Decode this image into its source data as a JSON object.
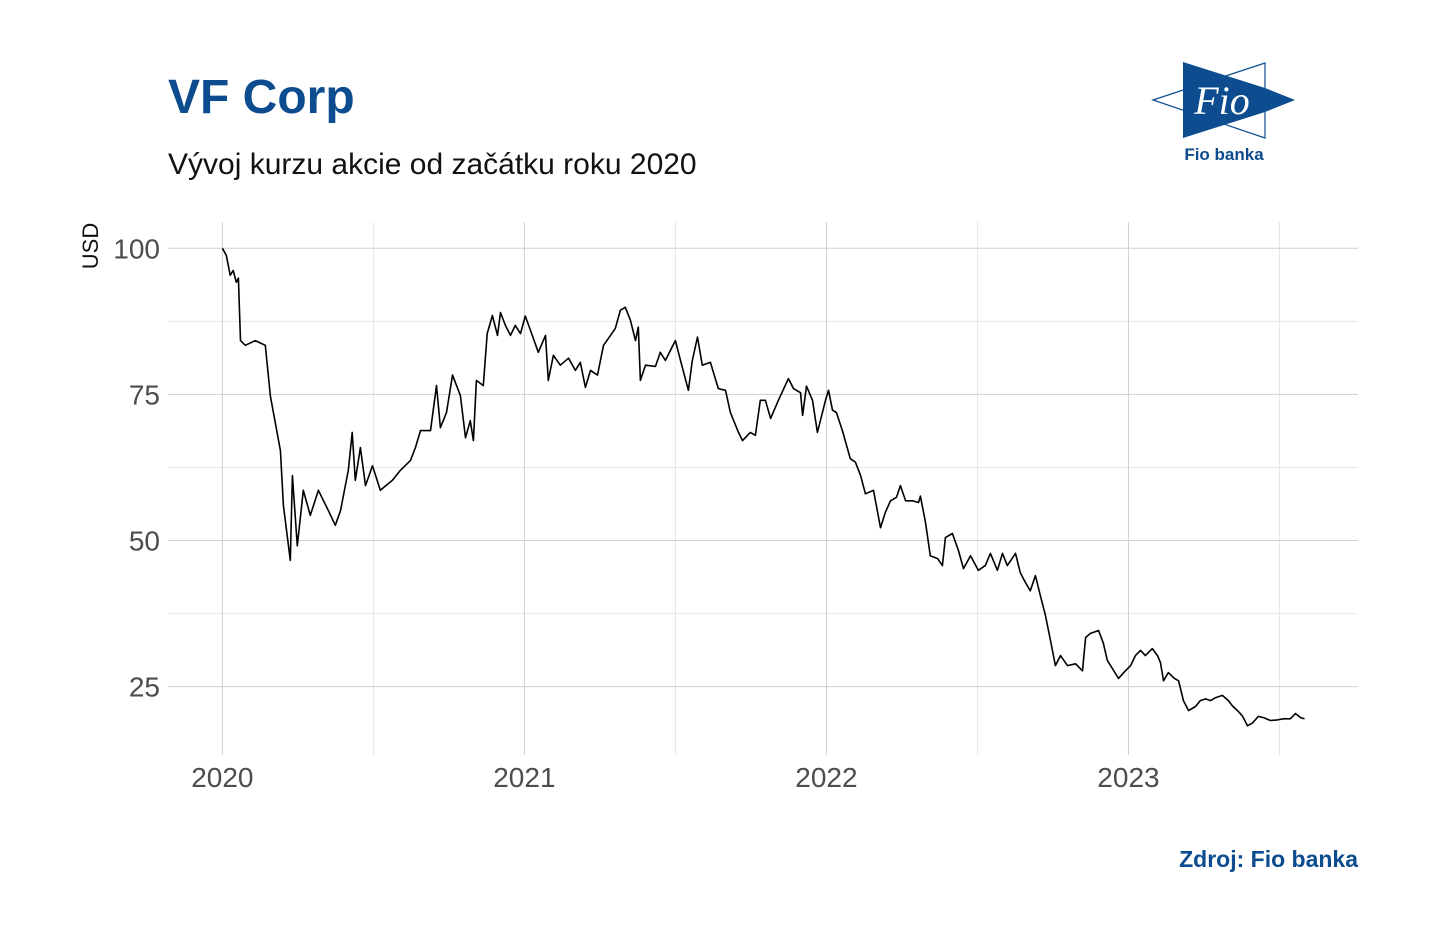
{
  "header": {
    "title": "VF Corp",
    "subtitle": "Vývoj kurzu akcie od začátku roku 2020"
  },
  "logo": {
    "text": "Fio",
    "caption": "Fio banka",
    "color": "#0d4c8f"
  },
  "footer": {
    "source": "Zdroj: Fio banka"
  },
  "chart_data": {
    "type": "line",
    "title": "VF Corp",
    "subtitle": "Vývoj kurzu akcie od začátku roku 2020",
    "xlabel": "",
    "ylabel": "USD",
    "x_ticks": [
      "2020",
      "2021",
      "2022",
      "2023"
    ],
    "y_ticks": [
      25,
      50,
      75,
      100
    ],
    "xlim": [
      2019.82,
      2023.76
    ],
    "ylim": [
      13.3,
      104.5
    ],
    "grid": true,
    "line_color": "#000000",
    "series": [
      {
        "points": [
          [
            2020.0,
            100.0
          ],
          [
            2020.013,
            98.8
          ],
          [
            2020.026,
            95.4
          ],
          [
            2020.036,
            96.2
          ],
          [
            2020.046,
            94.2
          ],
          [
            2020.053,
            94.9
          ],
          [
            2020.06,
            84.2
          ],
          [
            2020.076,
            83.4
          ],
          [
            2020.109,
            84.2
          ],
          [
            2020.142,
            83.4
          ],
          [
            2020.159,
            74.7
          ],
          [
            2020.192,
            65.4
          ],
          [
            2020.202,
            56.0
          ],
          [
            2020.225,
            46.6
          ],
          [
            2020.232,
            61.1
          ],
          [
            2020.248,
            49.1
          ],
          [
            2020.268,
            58.6
          ],
          [
            2020.291,
            54.3
          ],
          [
            2020.318,
            58.6
          ],
          [
            2020.351,
            55.1
          ],
          [
            2020.374,
            52.6
          ],
          [
            2020.391,
            55.1
          ],
          [
            2020.417,
            62.0
          ],
          [
            2020.43,
            68.5
          ],
          [
            2020.44,
            60.3
          ],
          [
            2020.457,
            65.9
          ],
          [
            2020.474,
            59.4
          ],
          [
            2020.497,
            62.8
          ],
          [
            2020.523,
            58.6
          ],
          [
            2020.563,
            60.3
          ],
          [
            2020.589,
            62.0
          ],
          [
            2020.623,
            63.7
          ],
          [
            2020.639,
            65.9
          ],
          [
            2020.656,
            68.8
          ],
          [
            2020.689,
            68.8
          ],
          [
            2020.709,
            76.5
          ],
          [
            2020.722,
            69.3
          ],
          [
            2020.742,
            71.9
          ],
          [
            2020.762,
            78.3
          ],
          [
            2020.788,
            74.8
          ],
          [
            2020.805,
            67.6
          ],
          [
            2020.821,
            70.5
          ],
          [
            2020.831,
            67.1
          ],
          [
            2020.841,
            77.4
          ],
          [
            2020.864,
            76.5
          ],
          [
            2020.877,
            85.4
          ],
          [
            2020.894,
            88.5
          ],
          [
            2020.911,
            85.1
          ],
          [
            2020.921,
            89.0
          ],
          [
            2020.937,
            86.8
          ],
          [
            2020.954,
            85.1
          ],
          [
            2020.97,
            86.8
          ],
          [
            2020.987,
            85.4
          ],
          [
            2021.003,
            88.4
          ],
          [
            2021.02,
            86.0
          ],
          [
            2021.046,
            82.2
          ],
          [
            2021.07,
            85.1
          ],
          [
            2021.079,
            77.4
          ],
          [
            2021.096,
            81.7
          ],
          [
            2021.119,
            80.0
          ],
          [
            2021.146,
            81.2
          ],
          [
            2021.169,
            79.1
          ],
          [
            2021.185,
            80.5
          ],
          [
            2021.202,
            76.2
          ],
          [
            2021.219,
            79.1
          ],
          [
            2021.242,
            78.3
          ],
          [
            2021.262,
            83.4
          ],
          [
            2021.285,
            85.1
          ],
          [
            2021.301,
            86.3
          ],
          [
            2021.318,
            89.4
          ],
          [
            2021.334,
            89.9
          ],
          [
            2021.351,
            87.7
          ],
          [
            2021.368,
            84.2
          ],
          [
            2021.377,
            86.5
          ],
          [
            2021.384,
            77.4
          ],
          [
            2021.401,
            80.0
          ],
          [
            2021.434,
            79.8
          ],
          [
            2021.45,
            82.2
          ],
          [
            2021.467,
            80.8
          ],
          [
            2021.483,
            82.5
          ],
          [
            2021.5,
            84.2
          ],
          [
            2021.517,
            80.8
          ],
          [
            2021.543,
            75.7
          ],
          [
            2021.556,
            80.8
          ],
          [
            2021.573,
            84.8
          ],
          [
            2021.589,
            80.0
          ],
          [
            2021.616,
            80.5
          ],
          [
            2021.642,
            76.0
          ],
          [
            2021.666,
            75.7
          ],
          [
            2021.682,
            71.9
          ],
          [
            2021.709,
            68.5
          ],
          [
            2021.722,
            67.1
          ],
          [
            2021.748,
            68.5
          ],
          [
            2021.765,
            68.0
          ],
          [
            2021.781,
            74.0
          ],
          [
            2021.798,
            74.0
          ],
          [
            2021.815,
            70.9
          ],
          [
            2021.841,
            74.0
          ],
          [
            2021.874,
            77.7
          ],
          [
            2021.891,
            76.0
          ],
          [
            2021.914,
            75.3
          ],
          [
            2021.921,
            71.4
          ],
          [
            2021.934,
            76.4
          ],
          [
            2021.954,
            74.0
          ],
          [
            2021.97,
            68.5
          ],
          [
            2021.997,
            74.0
          ],
          [
            2022.007,
            75.7
          ],
          [
            2022.02,
            72.3
          ],
          [
            2022.033,
            71.9
          ],
          [
            2022.053,
            68.8
          ],
          [
            2022.079,
            64.0
          ],
          [
            2022.096,
            63.4
          ],
          [
            2022.113,
            61.1
          ],
          [
            2022.129,
            58.0
          ],
          [
            2022.156,
            58.6
          ],
          [
            2022.179,
            52.2
          ],
          [
            2022.195,
            54.8
          ],
          [
            2022.212,
            56.8
          ],
          [
            2022.232,
            57.4
          ],
          [
            2022.245,
            59.4
          ],
          [
            2022.262,
            56.8
          ],
          [
            2022.285,
            56.8
          ],
          [
            2022.305,
            56.5
          ],
          [
            2022.311,
            57.6
          ],
          [
            2022.328,
            53.1
          ],
          [
            2022.344,
            47.4
          ],
          [
            2022.368,
            46.9
          ],
          [
            2022.384,
            45.7
          ],
          [
            2022.394,
            50.5
          ],
          [
            2022.417,
            51.2
          ],
          [
            2022.437,
            48.3
          ],
          [
            2022.454,
            45.2
          ],
          [
            2022.477,
            47.4
          ],
          [
            2022.503,
            44.9
          ],
          [
            2022.526,
            45.7
          ],
          [
            2022.543,
            47.8
          ],
          [
            2022.566,
            44.9
          ],
          [
            2022.583,
            47.8
          ],
          [
            2022.599,
            45.7
          ],
          [
            2022.626,
            47.8
          ],
          [
            2022.642,
            44.5
          ],
          [
            2022.659,
            42.8
          ],
          [
            2022.675,
            41.4
          ],
          [
            2022.692,
            44.0
          ],
          [
            2022.709,
            40.4
          ],
          [
            2022.725,
            37.2
          ],
          [
            2022.742,
            32.9
          ],
          [
            2022.758,
            28.6
          ],
          [
            2022.775,
            30.3
          ],
          [
            2022.798,
            28.6
          ],
          [
            2022.825,
            28.9
          ],
          [
            2022.848,
            27.7
          ],
          [
            2022.858,
            33.4
          ],
          [
            2022.874,
            34.1
          ],
          [
            2022.901,
            34.6
          ],
          [
            2022.917,
            32.4
          ],
          [
            2022.93,
            29.5
          ],
          [
            2022.947,
            28.1
          ],
          [
            2022.967,
            26.4
          ],
          [
            2022.99,
            27.7
          ],
          [
            2023.007,
            28.6
          ],
          [
            2023.023,
            30.3
          ],
          [
            2023.04,
            31.2
          ],
          [
            2023.056,
            30.3
          ],
          [
            2023.079,
            31.5
          ],
          [
            2023.096,
            30.3
          ],
          [
            2023.106,
            29.1
          ],
          [
            2023.116,
            26.0
          ],
          [
            2023.132,
            27.4
          ],
          [
            2023.152,
            26.4
          ],
          [
            2023.166,
            26.0
          ],
          [
            2023.182,
            22.6
          ],
          [
            2023.199,
            20.9
          ],
          [
            2023.222,
            21.6
          ],
          [
            2023.238,
            22.6
          ],
          [
            2023.255,
            22.9
          ],
          [
            2023.272,
            22.6
          ],
          [
            2023.288,
            23.1
          ],
          [
            2023.311,
            23.5
          ],
          [
            2023.331,
            22.6
          ],
          [
            2023.344,
            21.7
          ],
          [
            2023.361,
            20.9
          ],
          [
            2023.377,
            20.0
          ],
          [
            2023.394,
            18.3
          ],
          [
            2023.411,
            18.8
          ],
          [
            2023.43,
            19.9
          ],
          [
            2023.447,
            19.7
          ],
          [
            2023.47,
            19.2
          ],
          [
            2023.493,
            19.3
          ],
          [
            2023.513,
            19.5
          ],
          [
            2023.536,
            19.5
          ],
          [
            2023.553,
            20.4
          ],
          [
            2023.57,
            19.7
          ],
          [
            2023.583,
            19.5
          ]
        ]
      }
    ]
  }
}
